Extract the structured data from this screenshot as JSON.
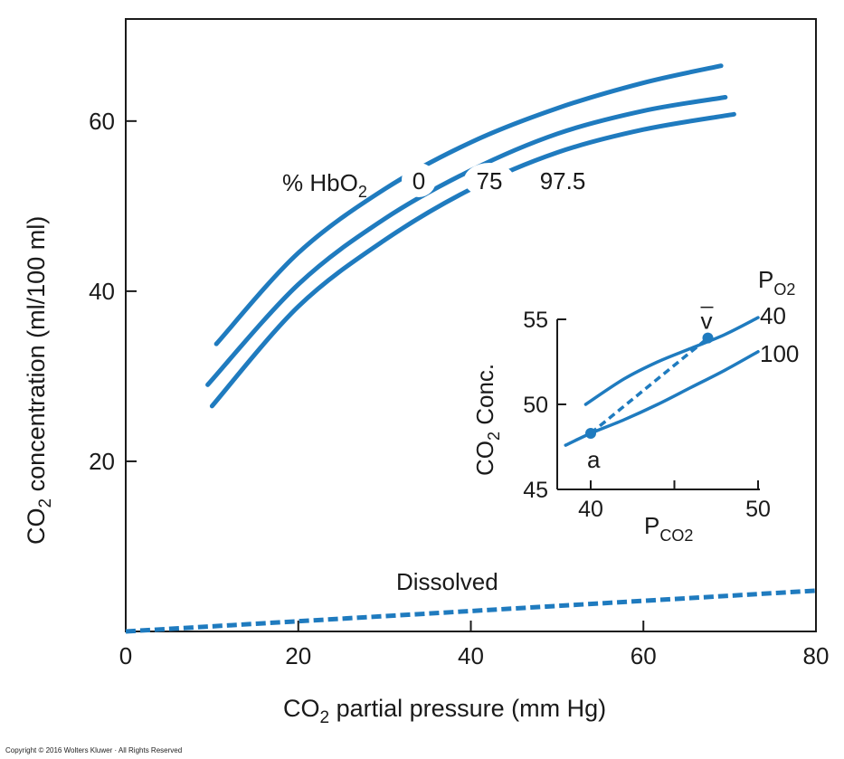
{
  "copyright": "Copyright © 2016 Wolters Kluwer · All Rights Reserved",
  "colors": {
    "curve": "#1f7bbf",
    "axis": "#1a1a1a",
    "text": "#1a1a1a"
  },
  "chart_data": [
    {
      "type": "line",
      "xlabel": {
        "prefix": "CO",
        "sub": "2",
        "suffix": " partial pressure (mm Hg)"
      },
      "ylabel": {
        "prefix": "CO",
        "sub": "2",
        "suffix": " concentration (ml/100 ml)"
      },
      "xlim": [
        0,
        80
      ],
      "ylim": [
        0,
        72
      ],
      "x_ticks": [
        0,
        20,
        40,
        60,
        80
      ],
      "x_tick_labels": [
        "0",
        "20",
        "40",
        "60",
        "80"
      ],
      "y_ticks": [
        20,
        40,
        60
      ],
      "y_tick_labels": [
        "20",
        "40",
        "60"
      ],
      "legend_title": {
        "prefix": "% HbO",
        "sub": "2"
      },
      "series": [
        {
          "name": "0",
          "points": [
            [
              10.5,
              33.8
            ],
            [
              20,
              44.5
            ],
            [
              30,
              52.0
            ],
            [
              40,
              57.5
            ],
            [
              50,
              61.5
            ],
            [
              60,
              64.5
            ],
            [
              69,
              66.5
            ]
          ]
        },
        {
          "name": "75",
          "points": [
            [
              9.5,
              29.0
            ],
            [
              20,
              40.8
            ],
            [
              30,
              48.5
            ],
            [
              40,
              54.2
            ],
            [
              50,
              58.5
            ],
            [
              60,
              61.2
            ],
            [
              69.5,
              62.8
            ]
          ]
        },
        {
          "name": "97.5",
          "points": [
            [
              10,
              26.5
            ],
            [
              20,
              38.2
            ],
            [
              30,
              46.0
            ],
            [
              40,
              52.0
            ],
            [
              50,
              56.3
            ],
            [
              60,
              59.0
            ],
            [
              70.5,
              60.8
            ]
          ]
        }
      ],
      "dissolved": {
        "label": "Dissolved",
        "points": [
          [
            0,
            0
          ],
          [
            80,
            4.8
          ]
        ]
      }
    },
    {
      "type": "line",
      "xlabel": {
        "prefix": "P",
        "sub": "CO2"
      },
      "ylabel": {
        "prefix": "CO",
        "sub": "2",
        "suffix": " Conc."
      },
      "xlim": [
        38.5,
        50
      ],
      "ylim": [
        45,
        55
      ],
      "x_ticks": [
        40,
        45,
        50
      ],
      "x_tick_labels": [
        "40",
        "",
        "50"
      ],
      "y_ticks": [
        45,
        50,
        55
      ],
      "y_tick_labels": [
        "45",
        "50",
        "55"
      ],
      "legend_title": {
        "prefix": "P",
        "sub": "O2"
      },
      "series": [
        {
          "name": "40",
          "points": [
            [
              39.7,
              50.0
            ],
            [
              42,
              51.5
            ],
            [
              44,
              52.5
            ],
            [
              46,
              53.3
            ],
            [
              48,
              54.1
            ],
            [
              50,
              55.1
            ]
          ]
        },
        {
          "name": "100",
          "points": [
            [
              38.5,
              47.6
            ],
            [
              40,
              48.3
            ],
            [
              42,
              49.1
            ],
            [
              44,
              50.0
            ],
            [
              46,
              51.0
            ],
            [
              48,
              52.0
            ],
            [
              50,
              53.1
            ]
          ]
        }
      ],
      "arterial_point": {
        "label": "a",
        "x": 40,
        "y": 48.3
      },
      "venous_point": {
        "label": "v",
        "x": 47,
        "y": 53.9
      }
    }
  ]
}
